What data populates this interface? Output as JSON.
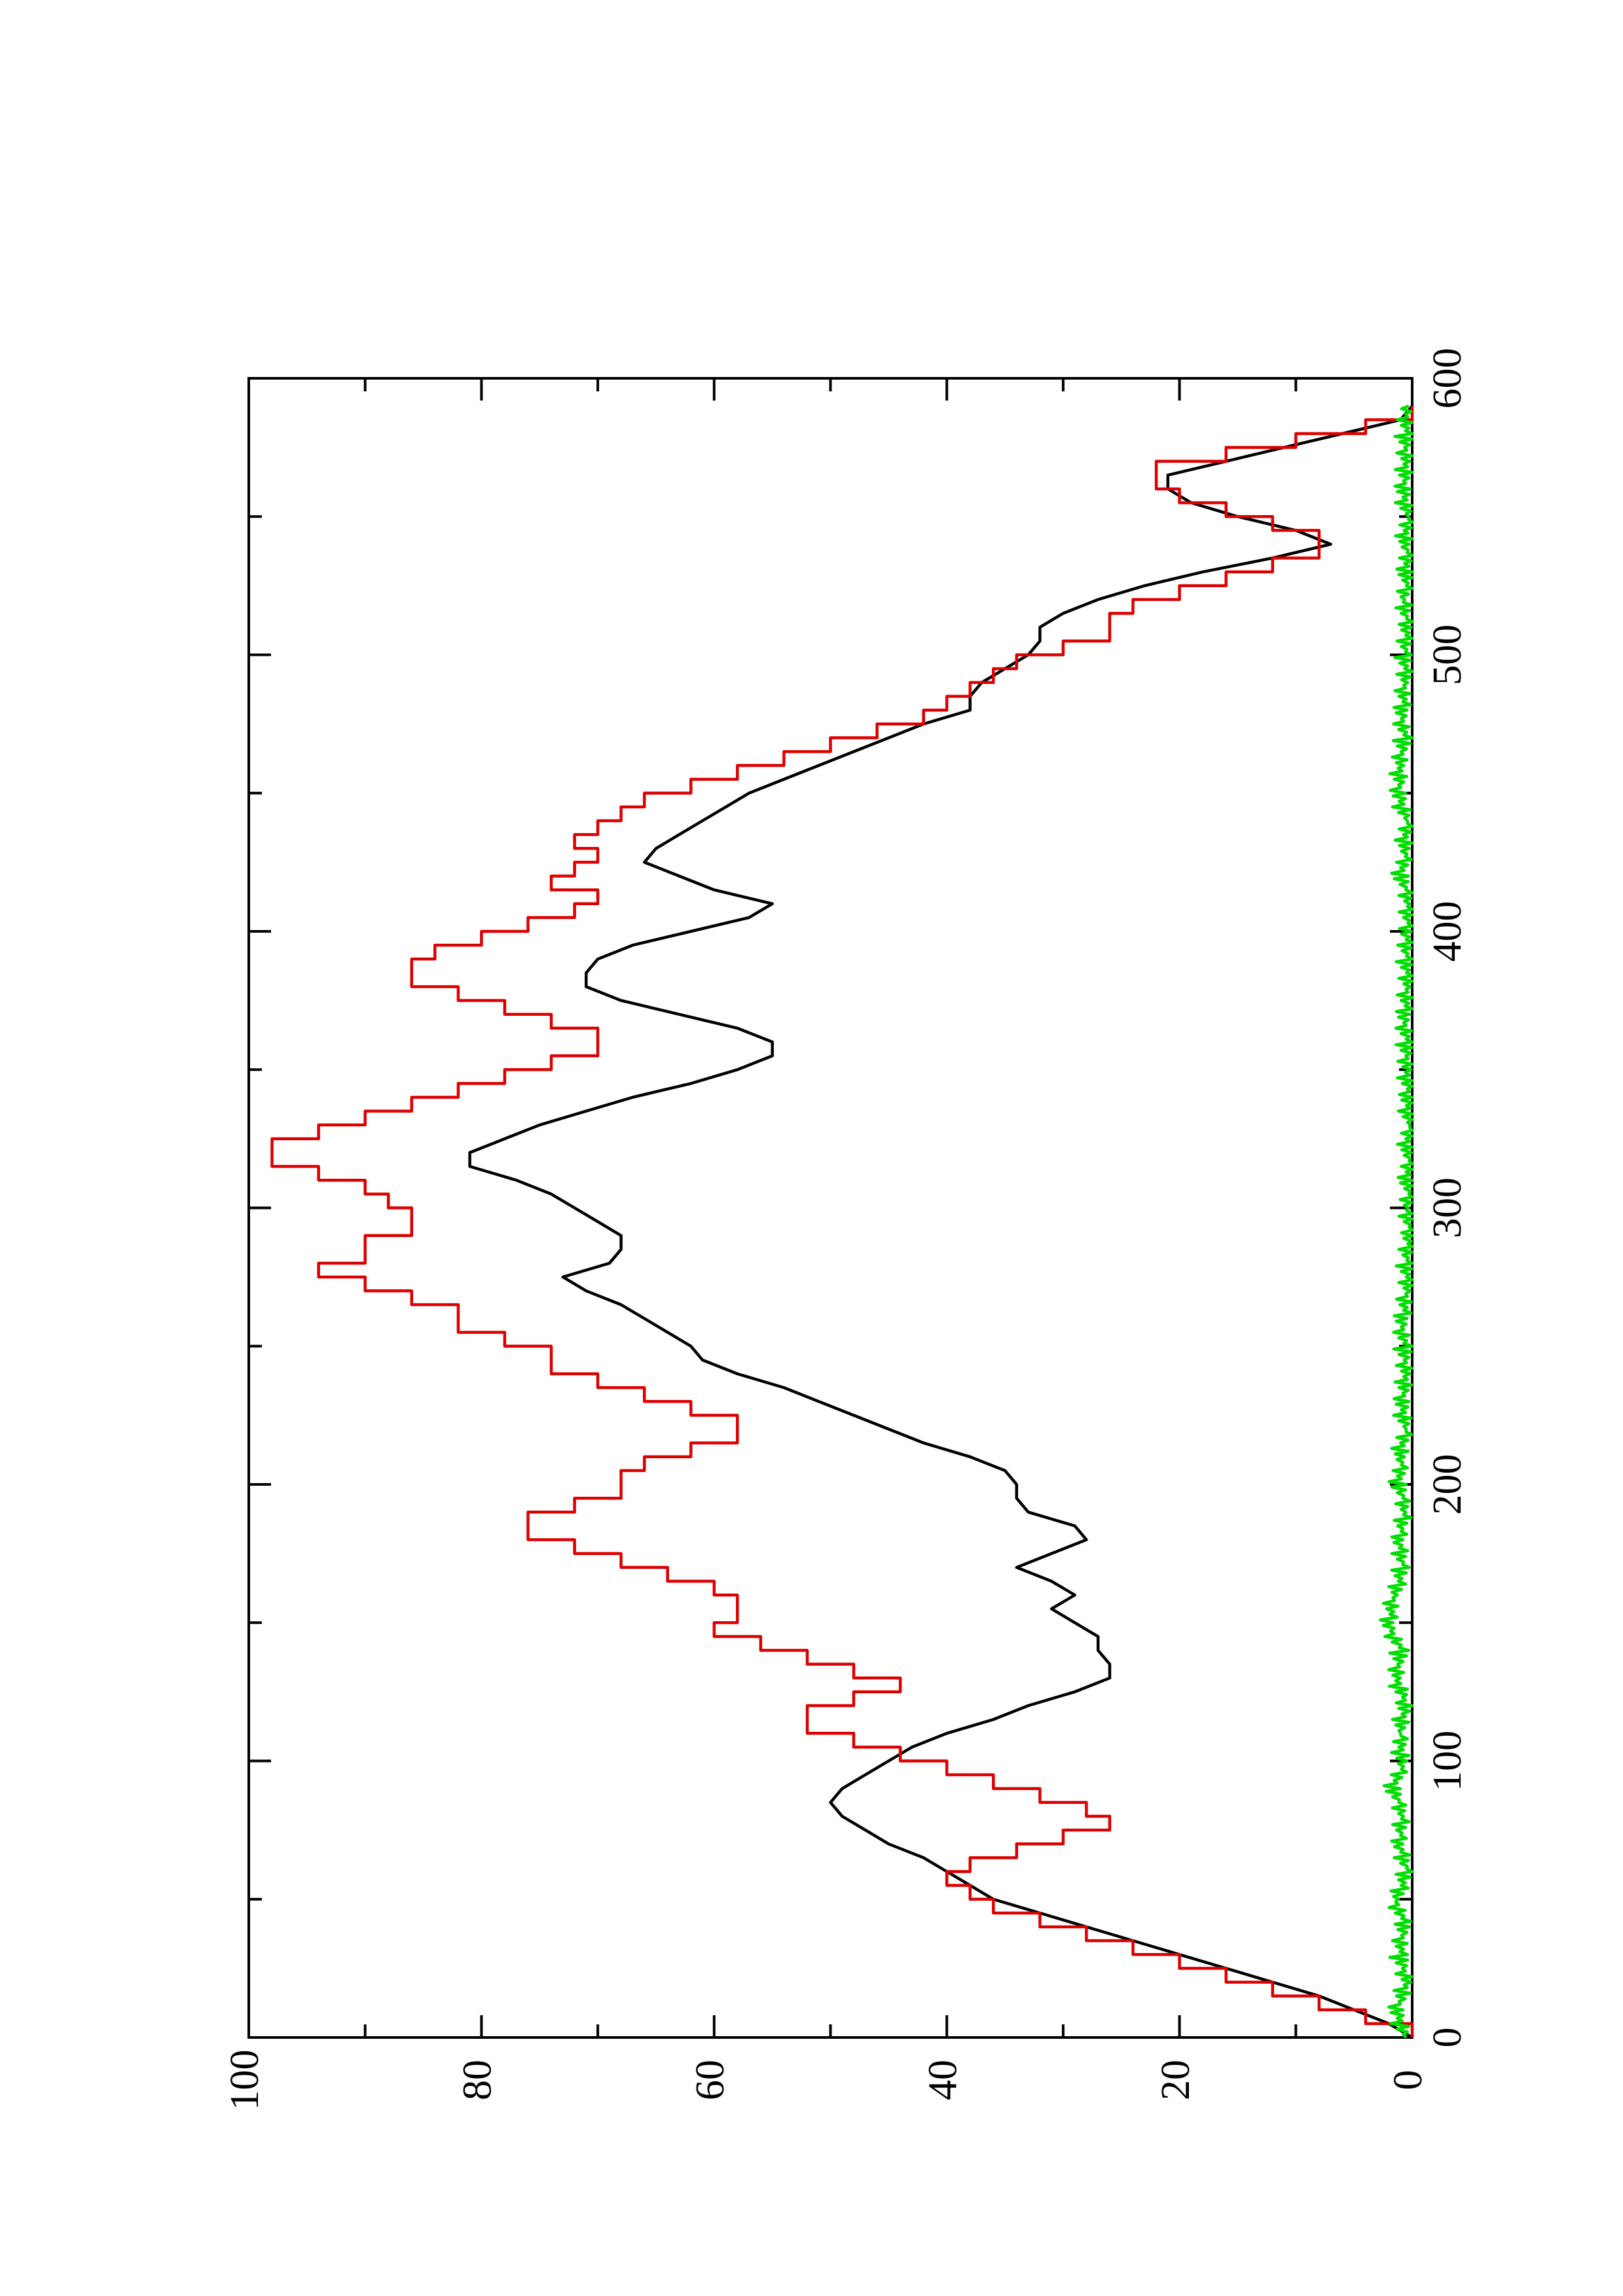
{
  "chart_data": {
    "type": "line",
    "orientation": "rotated-90-ccw",
    "title": "",
    "xlabel": "",
    "ylabel": "",
    "xlim": [
      0,
      600
    ],
    "ylim": [
      0,
      100
    ],
    "x_ticks": [
      0,
      100,
      200,
      300,
      400,
      500,
      600
    ],
    "x_minor_ticks": [
      50,
      150,
      250,
      350,
      450,
      550
    ],
    "y_ticks": [
      0,
      20,
      40,
      60,
      80,
      100
    ],
    "y_minor_ticks": [
      10,
      30,
      50,
      70,
      90
    ],
    "grid": false,
    "legend": "none",
    "series": [
      {
        "color": "#000000",
        "step": false,
        "points": [
          [
            0,
            0
          ],
          [
            5,
            2
          ],
          [
            10,
            5
          ],
          [
            15,
            8
          ],
          [
            20,
            12
          ],
          [
            25,
            16
          ],
          [
            30,
            20
          ],
          [
            35,
            24
          ],
          [
            40,
            28
          ],
          [
            45,
            32
          ],
          [
            50,
            36
          ],
          [
            55,
            38
          ],
          [
            60,
            40
          ],
          [
            65,
            42
          ],
          [
            70,
            45
          ],
          [
            75,
            47
          ],
          [
            80,
            49
          ],
          [
            85,
            50
          ],
          [
            90,
            49
          ],
          [
            95,
            47
          ],
          [
            100,
            45
          ],
          [
            105,
            43
          ],
          [
            110,
            40
          ],
          [
            115,
            36
          ],
          [
            120,
            33
          ],
          [
            125,
            29
          ],
          [
            130,
            26
          ],
          [
            135,
            26
          ],
          [
            140,
            27
          ],
          [
            145,
            27
          ],
          [
            150,
            29
          ],
          [
            155,
            31
          ],
          [
            160,
            29
          ],
          [
            165,
            31
          ],
          [
            170,
            34
          ],
          [
            175,
            31
          ],
          [
            180,
            28
          ],
          [
            185,
            29
          ],
          [
            190,
            33
          ],
          [
            195,
            34
          ],
          [
            200,
            34
          ],
          [
            205,
            35
          ],
          [
            210,
            38
          ],
          [
            215,
            42
          ],
          [
            220,
            45
          ],
          [
            225,
            48
          ],
          [
            230,
            51
          ],
          [
            235,
            54
          ],
          [
            240,
            58
          ],
          [
            245,
            61
          ],
          [
            250,
            62
          ],
          [
            255,
            64
          ],
          [
            260,
            66
          ],
          [
            265,
            68
          ],
          [
            270,
            71
          ],
          [
            275,
            73
          ],
          [
            280,
            69
          ],
          [
            285,
            68
          ],
          [
            290,
            68
          ],
          [
            295,
            70
          ],
          [
            300,
            72
          ],
          [
            305,
            74
          ],
          [
            310,
            77
          ],
          [
            315,
            81
          ],
          [
            320,
            81
          ],
          [
            325,
            78
          ],
          [
            330,
            75
          ],
          [
            335,
            71
          ],
          [
            340,
            67
          ],
          [
            345,
            62
          ],
          [
            350,
            58
          ],
          [
            355,
            55
          ],
          [
            360,
            55
          ],
          [
            365,
            58
          ],
          [
            370,
            63
          ],
          [
            375,
            68
          ],
          [
            380,
            71
          ],
          [
            385,
            71
          ],
          [
            390,
            70
          ],
          [
            395,
            67
          ],
          [
            400,
            62
          ],
          [
            405,
            57
          ],
          [
            410,
            55
          ],
          [
            415,
            60
          ],
          [
            420,
            63
          ],
          [
            425,
            66
          ],
          [
            430,
            65
          ],
          [
            435,
            63
          ],
          [
            440,
            61
          ],
          [
            445,
            59
          ],
          [
            450,
            57
          ],
          [
            455,
            54
          ],
          [
            460,
            51
          ],
          [
            465,
            48
          ],
          [
            470,
            45
          ],
          [
            475,
            42
          ],
          [
            480,
            38
          ],
          [
            485,
            38
          ],
          [
            490,
            37
          ],
          [
            495,
            35
          ],
          [
            500,
            33
          ],
          [
            505,
            32
          ],
          [
            510,
            32
          ],
          [
            515,
            30
          ],
          [
            520,
            27
          ],
          [
            525,
            23
          ],
          [
            530,
            18
          ],
          [
            535,
            12
          ],
          [
            540,
            7
          ],
          [
            545,
            10
          ],
          [
            550,
            15
          ],
          [
            555,
            19
          ],
          [
            560,
            21
          ],
          [
            565,
            21
          ],
          [
            570,
            16
          ],
          [
            575,
            11
          ],
          [
            580,
            6
          ],
          [
            585,
            1
          ],
          [
            590,
            0
          ]
        ]
      },
      {
        "color": "#dd0000",
        "step": true,
        "points": [
          [
            0,
            0
          ],
          [
            5,
            4
          ],
          [
            10,
            8
          ],
          [
            15,
            12
          ],
          [
            20,
            16
          ],
          [
            25,
            20
          ],
          [
            30,
            24
          ],
          [
            35,
            28
          ],
          [
            40,
            32
          ],
          [
            45,
            36
          ],
          [
            50,
            38
          ],
          [
            55,
            40
          ],
          [
            60,
            38
          ],
          [
            65,
            34
          ],
          [
            70,
            30
          ],
          [
            75,
            26
          ],
          [
            80,
            28
          ],
          [
            85,
            32
          ],
          [
            90,
            36
          ],
          [
            95,
            40
          ],
          [
            100,
            44
          ],
          [
            105,
            48
          ],
          [
            110,
            52
          ],
          [
            115,
            52
          ],
          [
            120,
            48
          ],
          [
            125,
            44
          ],
          [
            130,
            48
          ],
          [
            135,
            52
          ],
          [
            140,
            56
          ],
          [
            145,
            60
          ],
          [
            150,
            58
          ],
          [
            155,
            58
          ],
          [
            160,
            60
          ],
          [
            165,
            64
          ],
          [
            170,
            68
          ],
          [
            175,
            72
          ],
          [
            180,
            76
          ],
          [
            185,
            76
          ],
          [
            190,
            72
          ],
          [
            195,
            68
          ],
          [
            200,
            68
          ],
          [
            205,
            66
          ],
          [
            210,
            62
          ],
          [
            215,
            58
          ],
          [
            220,
            58
          ],
          [
            225,
            62
          ],
          [
            230,
            66
          ],
          [
            235,
            70
          ],
          [
            240,
            74
          ],
          [
            245,
            74
          ],
          [
            250,
            78
          ],
          [
            255,
            82
          ],
          [
            260,
            82
          ],
          [
            265,
            86
          ],
          [
            270,
            90
          ],
          [
            275,
            94
          ],
          [
            280,
            90
          ],
          [
            285,
            90
          ],
          [
            290,
            86
          ],
          [
            295,
            86
          ],
          [
            300,
            88
          ],
          [
            305,
            90
          ],
          [
            310,
            94
          ],
          [
            315,
            98
          ],
          [
            320,
            98
          ],
          [
            325,
            94
          ],
          [
            330,
            90
          ],
          [
            335,
            86
          ],
          [
            340,
            82
          ],
          [
            345,
            78
          ],
          [
            350,
            74
          ],
          [
            355,
            70
          ],
          [
            360,
            70
          ],
          [
            365,
            74
          ],
          [
            370,
            78
          ],
          [
            375,
            82
          ],
          [
            380,
            86
          ],
          [
            385,
            86
          ],
          [
            390,
            84
          ],
          [
            395,
            80
          ],
          [
            400,
            76
          ],
          [
            405,
            72
          ],
          [
            410,
            70
          ],
          [
            415,
            74
          ],
          [
            420,
            72
          ],
          [
            425,
            70
          ],
          [
            430,
            72
          ],
          [
            435,
            70
          ],
          [
            440,
            68
          ],
          [
            445,
            66
          ],
          [
            450,
            62
          ],
          [
            455,
            58
          ],
          [
            460,
            54
          ],
          [
            465,
            50
          ],
          [
            470,
            46
          ],
          [
            475,
            42
          ],
          [
            480,
            40
          ],
          [
            485,
            38
          ],
          [
            490,
            36
          ],
          [
            495,
            34
          ],
          [
            500,
            30
          ],
          [
            505,
            26
          ],
          [
            510,
            26
          ],
          [
            515,
            24
          ],
          [
            520,
            20
          ],
          [
            525,
            16
          ],
          [
            530,
            12
          ],
          [
            535,
            8
          ],
          [
            540,
            8
          ],
          [
            545,
            12
          ],
          [
            550,
            16
          ],
          [
            555,
            20
          ],
          [
            560,
            22
          ],
          [
            565,
            22
          ],
          [
            570,
            16
          ],
          [
            575,
            10
          ],
          [
            580,
            4
          ],
          [
            585,
            0
          ],
          [
            590,
            0
          ]
        ]
      },
      {
        "color": "#00dd00",
        "step": false,
        "noise": true,
        "points": [
          [
            0,
            0.5
          ],
          [
            10,
            1.2
          ],
          [
            20,
            0.3
          ],
          [
            30,
            1.0
          ],
          [
            40,
            0.6
          ],
          [
            50,
            1.3
          ],
          [
            60,
            0.4
          ],
          [
            70,
            1.1
          ],
          [
            80,
            0.8
          ],
          [
            90,
            1.5
          ],
          [
            100,
            0.7
          ],
          [
            110,
            1.0
          ],
          [
            120,
            0.4
          ],
          [
            130,
            1.2
          ],
          [
            140,
            0.9
          ],
          [
            150,
            2.0
          ],
          [
            160,
            1.4
          ],
          [
            170,
            0.8
          ],
          [
            180,
            1.1
          ],
          [
            190,
            0.6
          ],
          [
            200,
            1.0
          ],
          [
            210,
            0.9
          ],
          [
            220,
            0.5
          ],
          [
            230,
            0.7
          ],
          [
            240,
            0.4
          ],
          [
            250,
            0.6
          ],
          [
            260,
            0.8
          ],
          [
            270,
            0.3
          ],
          [
            280,
            0.5
          ],
          [
            290,
            0.2
          ],
          [
            300,
            0.4
          ],
          [
            310,
            0.2
          ],
          [
            320,
            0.3
          ],
          [
            330,
            0.2
          ],
          [
            340,
            0.2
          ],
          [
            350,
            0.3
          ],
          [
            360,
            0.4
          ],
          [
            370,
            0.6
          ],
          [
            380,
            0.3
          ],
          [
            390,
            0.5
          ],
          [
            400,
            0.4
          ],
          [
            410,
            0.3
          ],
          [
            420,
            0.8
          ],
          [
            430,
            0.5
          ],
          [
            440,
            0.4
          ],
          [
            450,
            1.0
          ],
          [
            460,
            0.9
          ],
          [
            470,
            0.6
          ],
          [
            480,
            0.8
          ],
          [
            490,
            0.5
          ],
          [
            500,
            0.6
          ],
          [
            510,
            0.4
          ],
          [
            520,
            0.7
          ],
          [
            530,
            0.3
          ],
          [
            540,
            0.5
          ],
          [
            550,
            0.3
          ],
          [
            560,
            0.6
          ],
          [
            570,
            0.4
          ],
          [
            580,
            0.5
          ],
          [
            590,
            0.3
          ]
        ]
      }
    ]
  }
}
